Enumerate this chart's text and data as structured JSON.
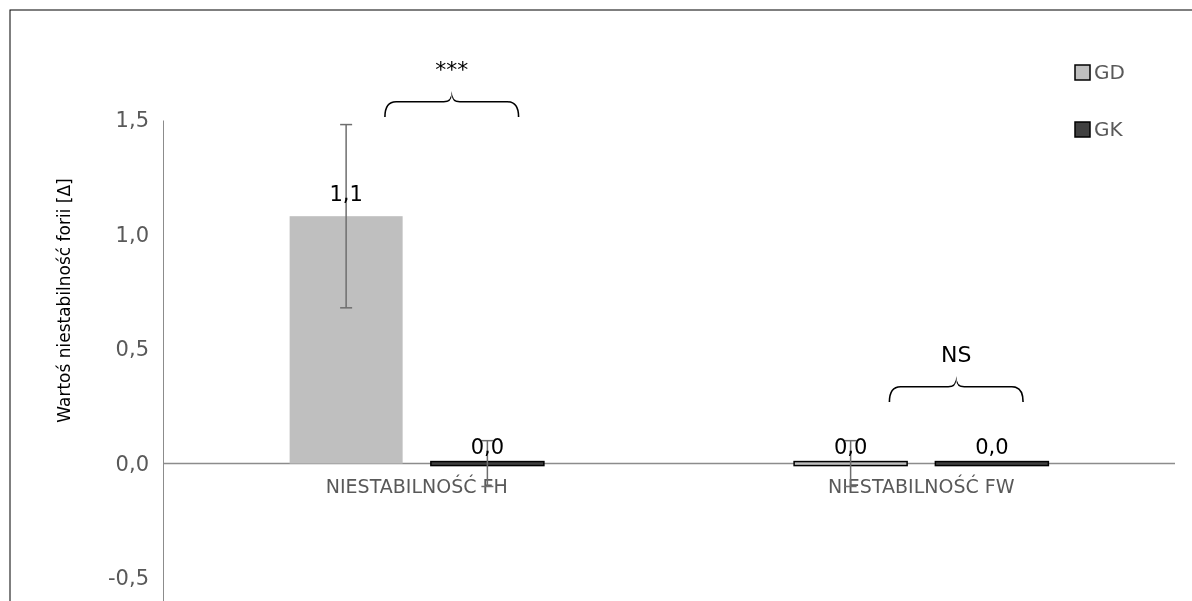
{
  "chart_data": {
    "type": "bar",
    "ylabel": "Wartoś niestabilność forii [Δ]",
    "categories": [
      "NIESTABILNOŚĆ FH",
      "NIESTABILNOŚĆ FW"
    ],
    "series": [
      {
        "name": "GD",
        "color": "#bfbfbf",
        "values": [
          1.08,
          0.0
        ],
        "errors": [
          0.4,
          0.1
        ],
        "value_labels": [
          "1,1",
          "0,0"
        ]
      },
      {
        "name": "GK",
        "color": "#404040",
        "values": [
          0.0,
          0.0
        ],
        "errors": [
          0.1,
          null
        ],
        "value_labels": [
          "0,0",
          "0,0"
        ]
      }
    ],
    "ylim": [
      -0.6,
      1.5
    ],
    "yticks": [
      {
        "value": -0.5,
        "label": "-0,5"
      },
      {
        "value": 0,
        "label": "0,0"
      },
      {
        "value": 0.5,
        "label": "0,5"
      },
      {
        "value": 1,
        "label": "1,0"
      },
      {
        "value": 1.5,
        "label": "1,5"
      }
    ],
    "grid": false,
    "legend": "top right",
    "annotations": [
      "***",
      "NS"
    ]
  }
}
